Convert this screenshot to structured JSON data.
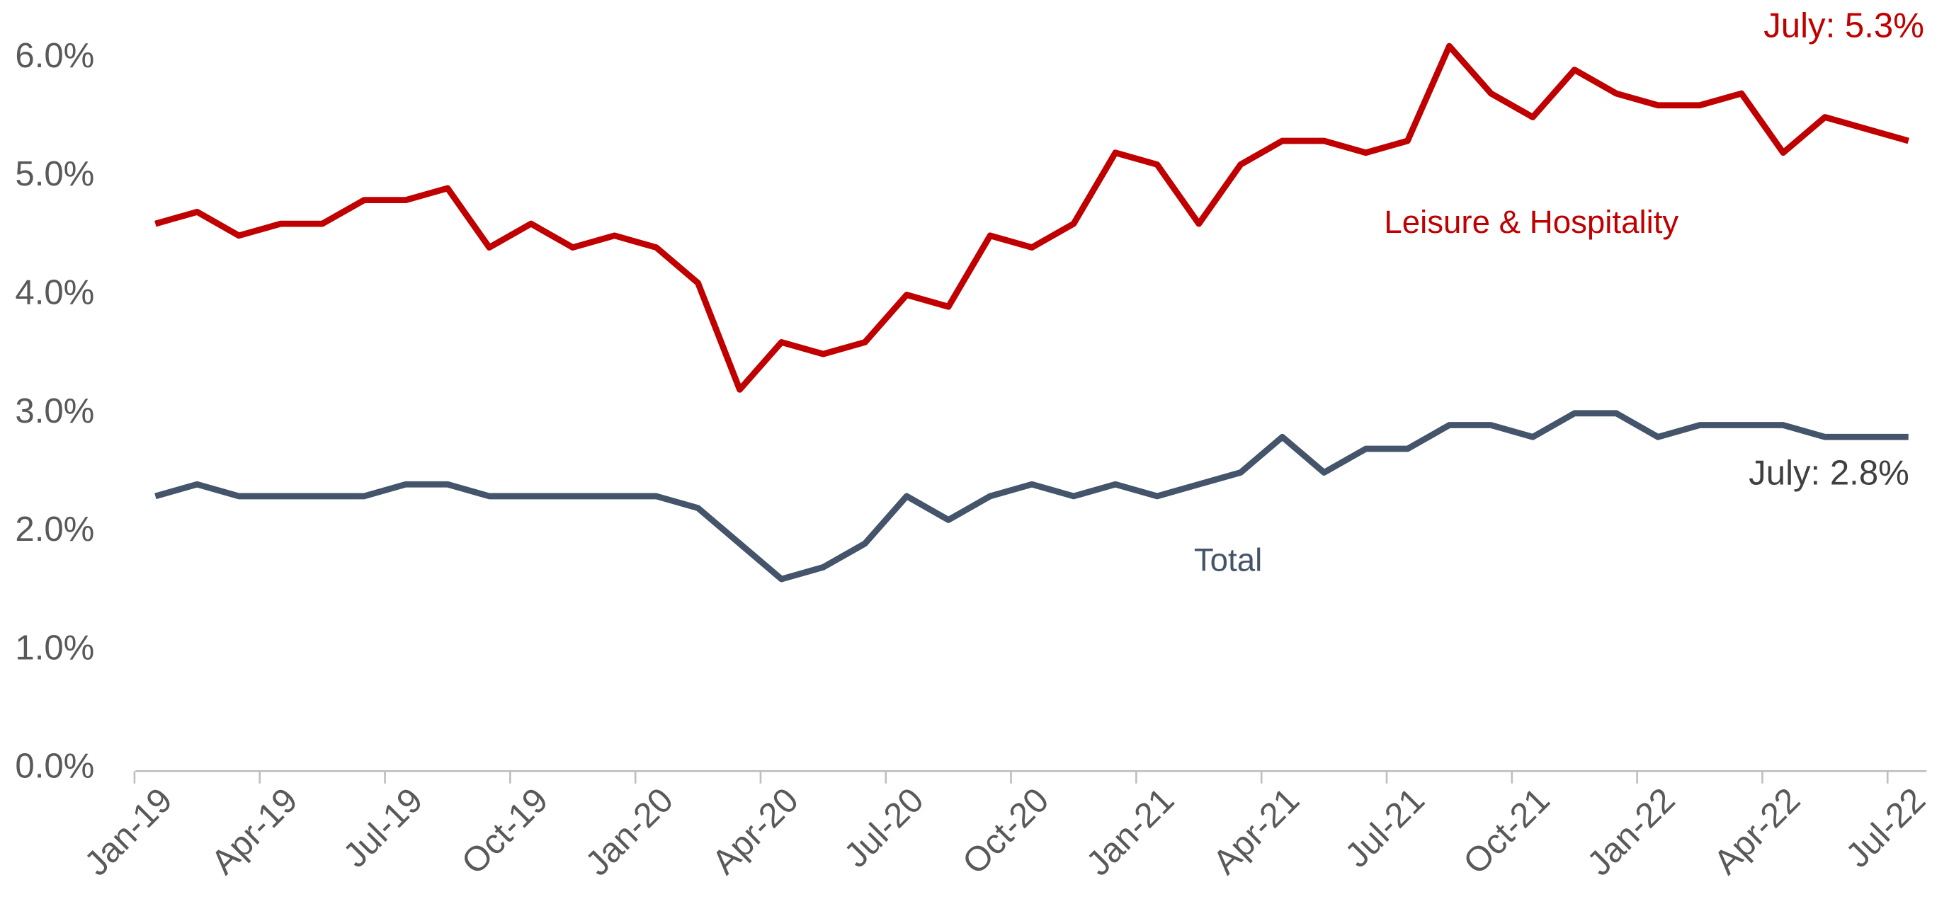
{
  "chart_data": {
    "type": "line",
    "categories": [
      "Jan-19",
      null,
      null,
      "Apr-19",
      null,
      null,
      "Jul-19",
      null,
      null,
      "Oct-19",
      null,
      null,
      "Jan-20",
      null,
      null,
      "Apr-20",
      null,
      null,
      "Jul-20",
      null,
      null,
      "Oct-20",
      null,
      null,
      "Jan-21",
      null,
      null,
      "Apr-21",
      null,
      null,
      "Jul-21",
      null,
      null,
      "Oct-21",
      null,
      null,
      "Jan-22",
      null,
      null,
      "Apr-22",
      null,
      null,
      "Jul-22"
    ],
    "series": [
      {
        "name": "Leisure & Hospitality",
        "color": "#c00000",
        "values": [
          4.6,
          4.7,
          4.5,
          4.6,
          4.6,
          4.8,
          4.8,
          4.9,
          4.4,
          4.6,
          4.4,
          4.5,
          4.4,
          4.1,
          3.2,
          3.6,
          3.5,
          3.6,
          4.0,
          3.9,
          4.5,
          4.4,
          4.6,
          5.2,
          5.1,
          4.6,
          5.1,
          5.3,
          5.3,
          5.2,
          5.3,
          6.1,
          5.7,
          5.5,
          5.9,
          5.7,
          5.6,
          5.6,
          5.7,
          5.2,
          5.5,
          5.4,
          5.3
        ]
      },
      {
        "name": "Total",
        "color": "#44546a",
        "values": [
          2.3,
          2.4,
          2.3,
          2.3,
          2.3,
          2.3,
          2.4,
          2.4,
          2.3,
          2.3,
          2.3,
          2.3,
          2.3,
          2.2,
          1.9,
          1.6,
          1.7,
          1.9,
          2.3,
          2.1,
          2.3,
          2.4,
          2.3,
          2.4,
          2.3,
          2.4,
          2.5,
          2.8,
          2.5,
          2.7,
          2.7,
          2.9,
          2.9,
          2.8,
          3.0,
          3.0,
          2.8,
          2.9,
          2.9,
          2.9,
          2.8,
          2.8,
          2.8
        ]
      }
    ],
    "annotations": [
      {
        "text": "July: 5.3%",
        "series": 0
      },
      {
        "text": "July: 2.8%",
        "series": 1
      }
    ],
    "ylim": [
      0,
      6
    ],
    "yticks": [
      {
        "value": 0,
        "label": "0.0%"
      },
      {
        "value": 1,
        "label": "1.0%"
      },
      {
        "value": 2,
        "label": "2.0%"
      },
      {
        "value": 3,
        "label": "3.0%"
      },
      {
        "value": 4,
        "label": "4.0%"
      },
      {
        "value": 5,
        "label": "5.0%"
      },
      {
        "value": 6,
        "label": "6.0%"
      }
    ],
    "grid": false
  }
}
